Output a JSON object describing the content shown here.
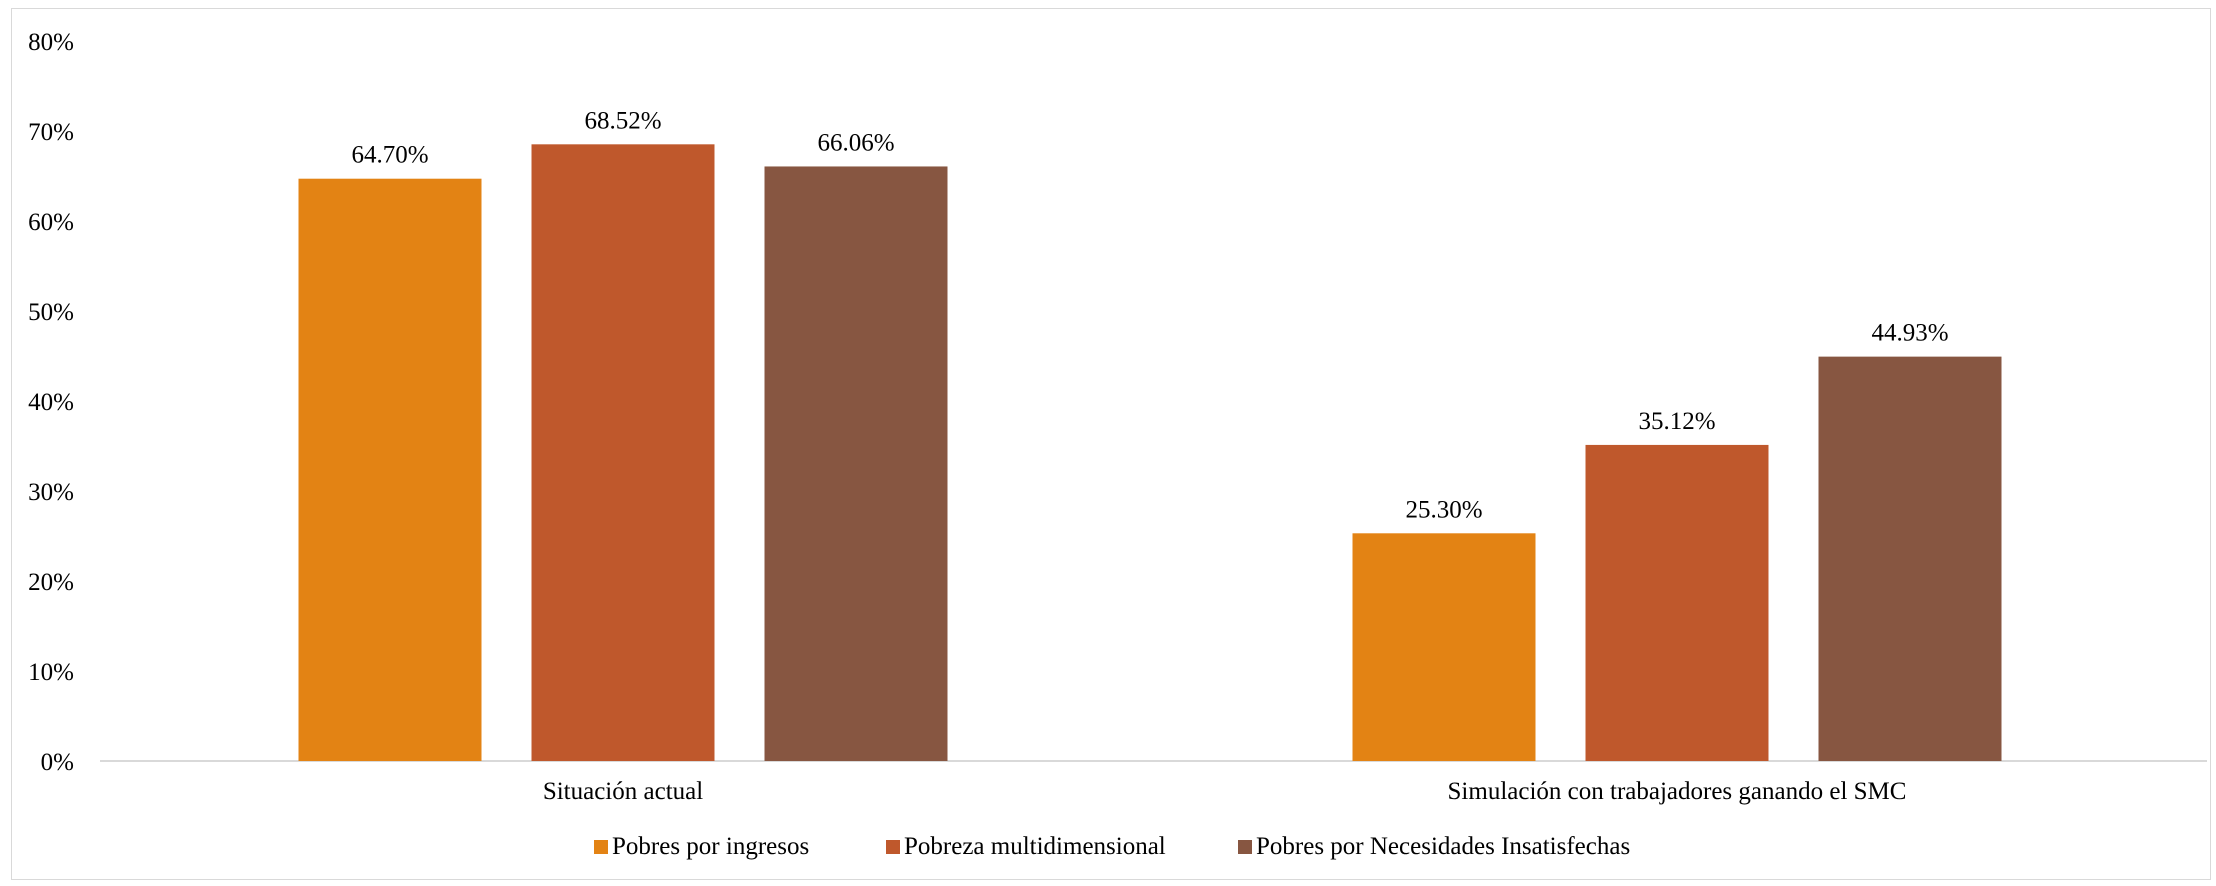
{
  "chart_data": {
    "type": "bar",
    "categories": [
      "Situación actual",
      "Simulación con trabajadores ganando el SMC"
    ],
    "series": [
      {
        "name": "Pobres por ingresos",
        "values": [
          64.7,
          25.3
        ],
        "color": "#E38314"
      },
      {
        "name": "Pobreza multidimensional",
        "values": [
          68.52,
          35.12
        ],
        "color": "#BF582C"
      },
      {
        "name": "Pobres por Necesidades Insatisfechas",
        "values": [
          66.06,
          44.93
        ],
        "color": "#875641"
      }
    ],
    "data_labels": [
      [
        "64.70%",
        "25.30%"
      ],
      [
        "68.52%",
        "35.12%"
      ],
      [
        "66.06%",
        "44.93%"
      ]
    ],
    "y_ticks": [
      "0%",
      "10%",
      "20%",
      "30%",
      "40%",
      "50%",
      "60%",
      "70%",
      "80%"
    ],
    "ylim": [
      0,
      80
    ],
    "title": "",
    "xlabel": "",
    "ylabel": "",
    "grid": false,
    "legend_position": "bottom"
  }
}
